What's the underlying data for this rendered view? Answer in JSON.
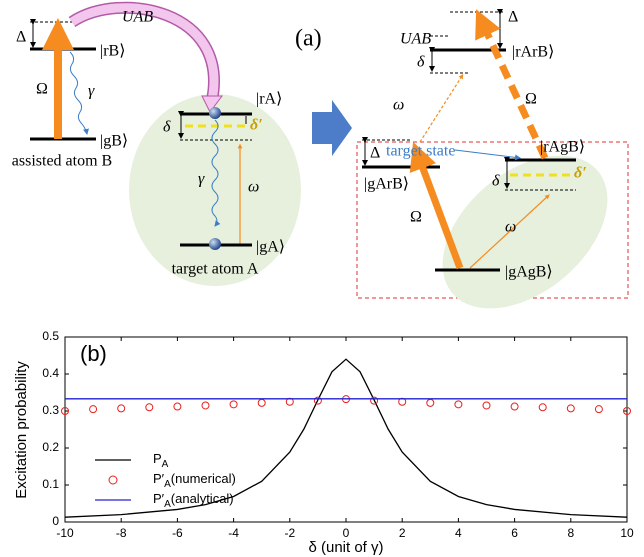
{
  "diagram": {
    "panel_label": "(a)",
    "left": {
      "coupling": "UAB",
      "detuning": "Δ",
      "rydberg_b": "|rB⟩",
      "rabi": "Ω",
      "decay_b": "γ",
      "ground_b": "|gB⟩",
      "atom_b": "assisted atom B",
      "rydberg_a": "|rA⟩",
      "delta": "δ",
      "delta_prime": "δ′",
      "decay_a": "γ",
      "probe": "ω",
      "ground_a": "|gA⟩",
      "atom_a": "target atom A"
    },
    "right": {
      "detuning_top": "Δ",
      "coupling": "UAB",
      "state_rr": "|rArB⟩",
      "delta_top": "δ",
      "probe_top": "ω",
      "rabi_top": "Ω",
      "target_state": "target state",
      "detuning_mid": "Δ",
      "state_gr": "|gArB⟩",
      "state_rg": "|rAgB⟩",
      "delta_mid": "δ",
      "delta_prime": "δ′",
      "rabi": "Ω",
      "probe": "ω",
      "state_gg": "|gAgB⟩"
    }
  },
  "chart_data": {
    "type": "line",
    "panel_label": "(b)",
    "x_label": "δ (unit of γ)",
    "y_label": "Excitation probability",
    "xlim": [
      -10,
      10
    ],
    "ylim": [
      0,
      0.5
    ],
    "xticks": [
      -10,
      -8,
      -6,
      -4,
      -2,
      0,
      2,
      4,
      6,
      8,
      10
    ],
    "yticks": [
      0,
      0.1,
      0.2,
      0.3,
      0.4,
      0.5
    ],
    "legend": "lower left",
    "series": [
      {
        "name": "P",
        "name_subscript": "A",
        "name_suffix": "",
        "color": "#000000",
        "style": "line",
        "x": [
          -10,
          -8,
          -6,
          -5,
          -4,
          -3,
          -2,
          -1.5,
          -1,
          -0.5,
          0,
          0.5,
          1,
          1.5,
          2,
          3,
          4,
          5,
          6,
          8,
          10
        ],
        "values": [
          0.013,
          0.02,
          0.034,
          0.047,
          0.069,
          0.11,
          0.189,
          0.251,
          0.33,
          0.406,
          0.44,
          0.406,
          0.33,
          0.251,
          0.189,
          0.11,
          0.069,
          0.047,
          0.034,
          0.02,
          0.013
        ]
      },
      {
        "name": "P′",
        "name_subscript": "A",
        "name_suffix": "(numerical)",
        "color": "#e8201c",
        "style": "circles",
        "x": [
          -10,
          -9,
          -8,
          -7,
          -6,
          -5,
          -4,
          -3,
          -2,
          -1,
          0,
          1,
          2,
          3,
          4,
          5,
          6,
          7,
          8,
          9,
          10
        ],
        "values": [
          0.3,
          0.305,
          0.307,
          0.31,
          0.312,
          0.315,
          0.318,
          0.322,
          0.325,
          0.328,
          0.332,
          0.328,
          0.325,
          0.322,
          0.318,
          0.315,
          0.312,
          0.31,
          0.307,
          0.305,
          0.3
        ]
      },
      {
        "name": "P′",
        "name_subscript": "A",
        "name_suffix": "(analytical)",
        "color": "#2020d0",
        "style": "line",
        "x": [
          -10,
          10
        ],
        "values": [
          0.333,
          0.333
        ]
      }
    ]
  }
}
